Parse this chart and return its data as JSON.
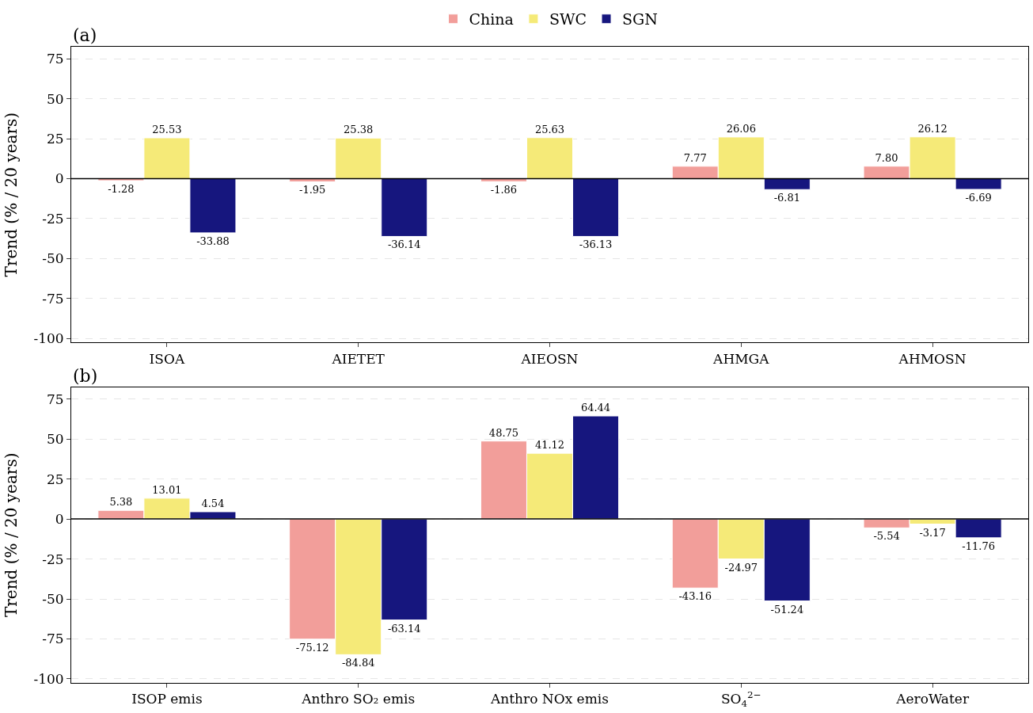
{
  "chart_data": [
    {
      "type": "bar",
      "title": "(a)",
      "ylabel": "Trend (% / 20 years)",
      "categories": [
        "ISOA",
        "AIETET",
        "AIEOSN",
        "AHMGA",
        "AHMOSN"
      ],
      "series": [
        {
          "name": "China",
          "color": "#f29e9a",
          "values": [
            -1.28,
            -1.95,
            -1.86,
            7.77,
            7.8
          ],
          "value_labels": [
            "-1.28",
            "-1.95",
            "-1.86",
            "7.77",
            "7.80"
          ]
        },
        {
          "name": "SWC",
          "color": "#f5ea78",
          "values": [
            25.53,
            25.38,
            25.63,
            26.06,
            26.12
          ],
          "value_labels": [
            "25.53",
            "25.38",
            "25.63",
            "26.06",
            "26.12"
          ]
        },
        {
          "name": "SGN",
          "color": "#16167e",
          "values": [
            -33.88,
            -36.14,
            -36.13,
            -6.81,
            -6.69
          ],
          "value_labels": [
            "-33.88",
            "-36.14",
            "-36.13",
            "-6.81",
            "-6.69"
          ]
        }
      ],
      "ylim": [
        -102.5,
        82.5
      ],
      "yticks": [
        -100,
        -75,
        -50,
        -25,
        0,
        25,
        50,
        75
      ],
      "grid": "y",
      "legend": "top",
      "ref_lines": [
        {
          "axis": "y",
          "value": 0,
          "color": "#000000",
          "line_style": "solid"
        }
      ]
    },
    {
      "type": "bar",
      "title": "(b)",
      "ylabel": "Trend (% / 20 years)",
      "categories": [
        "ISOP emis",
        "Anthro SO₂ emis",
        "Anthro NOx emis",
        "SO$_{4}$$^{2−}$",
        "AeroWater"
      ],
      "series": [
        {
          "name": "China",
          "color": "#f29e9a",
          "values": [
            5.38,
            -75.12,
            48.75,
            -43.16,
            -5.54
          ],
          "value_labels": [
            "5.38",
            "-75.12",
            "48.75",
            "-43.16",
            "-5.54"
          ]
        },
        {
          "name": "SWC",
          "color": "#f5ea78",
          "values": [
            13.01,
            -84.84,
            41.12,
            -24.97,
            -3.17
          ],
          "value_labels": [
            "13.01",
            "-84.84",
            "41.12",
            "-24.97",
            "-3.17"
          ]
        },
        {
          "name": "SGN",
          "color": "#16167e",
          "values": [
            4.54,
            -63.14,
            64.44,
            -51.24,
            -11.76
          ],
          "value_labels": [
            "4.54",
            "-63.14",
            "64.44",
            "-51.24",
            "-11.76"
          ]
        }
      ],
      "ylim": [
        -102.5,
        82.5
      ],
      "yticks": [
        -100,
        -75,
        -50,
        -25,
        0,
        25,
        50,
        75
      ],
      "grid": "y",
      "ref_lines": [
        {
          "axis": "y",
          "value": 0,
          "color": "#000000",
          "line_style": "solid"
        }
      ]
    }
  ]
}
